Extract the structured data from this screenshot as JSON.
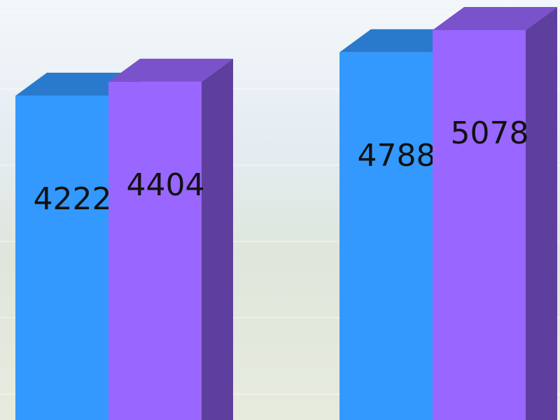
{
  "chart_data": {
    "type": "bar",
    "categories": [
      null,
      null
    ],
    "series": [
      {
        "color": "#3399ff",
        "values": [
          4222,
          4788
        ]
      },
      {
        "color": "#9966ff",
        "values": [
          4404,
          5078
        ]
      }
    ]
  }
}
